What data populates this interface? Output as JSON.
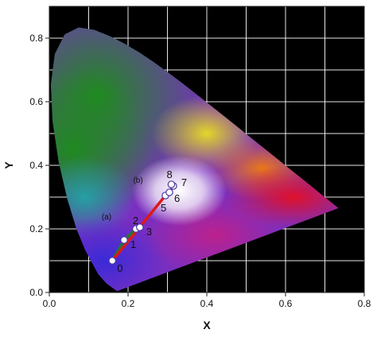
{
  "chart_data": {
    "type": "scatter",
    "title": "",
    "xlabel": "X",
    "ylabel": "Y",
    "xlim": [
      0.0,
      0.8
    ],
    "ylim": [
      0.0,
      0.9
    ],
    "grid": true,
    "x_ticks": [
      "0.0",
      "0.2",
      "0.4",
      "0.6",
      "0.8"
    ],
    "y_ticks": [
      "0.0",
      "0.2",
      "0.4",
      "0.6",
      "0.8"
    ],
    "series": [
      {
        "name": "(a)",
        "line_color": "#1a7a3a",
        "points": [
          {
            "label": "0",
            "x": 0.16,
            "y": 0.1
          },
          {
            "label": "1",
            "x": 0.19,
            "y": 0.165
          },
          {
            "label": "2",
            "x": 0.22,
            "y": 0.2
          },
          {
            "label": "3",
            "x": 0.23,
            "y": 0.205
          }
        ]
      },
      {
        "name": "(b)",
        "line_color": "#e01818",
        "points": [
          {
            "label": "0",
            "x": 0.16,
            "y": 0.1
          },
          {
            "label": "5",
            "x": 0.295,
            "y": 0.305
          },
          {
            "label": "6",
            "x": 0.305,
            "y": 0.315
          },
          {
            "label": "7",
            "x": 0.315,
            "y": 0.335
          },
          {
            "label": "8",
            "x": 0.31,
            "y": 0.34
          }
        ]
      }
    ]
  }
}
